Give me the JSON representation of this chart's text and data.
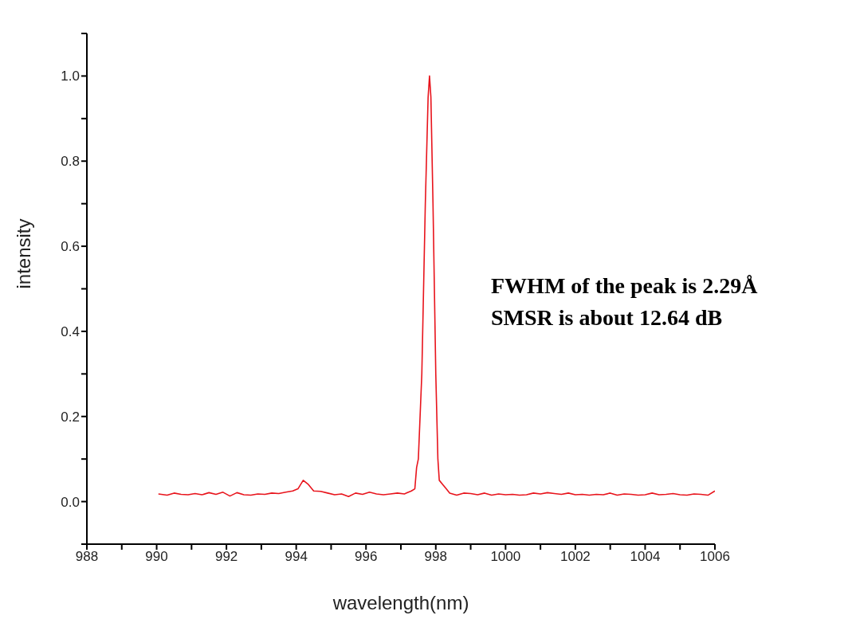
{
  "chart_data": {
    "type": "line",
    "xlabel": "wavelength(nm)",
    "ylabel": "intensity",
    "xlim": [
      988,
      1006
    ],
    "xticks": [
      988,
      {
        "value": 989,
        "label": null
      },
      990,
      {
        "value": 991,
        "label": null
      },
      992,
      {
        "value": 993,
        "label": null
      },
      994,
      {
        "value": 995,
        "label": null
      },
      996,
      {
        "value": 997,
        "label": null
      },
      998,
      {
        "value": 999,
        "label": null
      },
      1000,
      {
        "value": 1001,
        "label": null
      },
      1002,
      {
        "value": 1003,
        "label": null
      },
      1004,
      {
        "value": 1005,
        "label": null
      },
      1006
    ],
    "ylim": [
      -0.1,
      1.1
    ],
    "yticks": [
      {
        "value": -0.1,
        "label": null
      },
      {
        "value": 0,
        "label": "0.0"
      },
      {
        "value": 0.1,
        "label": null
      },
      0.2,
      {
        "value": 0.3,
        "label": null
      },
      0.4,
      {
        "value": 0.5,
        "label": null
      },
      0.6,
      {
        "value": 0.7,
        "label": null
      },
      0.8,
      {
        "value": 0.9,
        "label": null
      },
      {
        "value": 1,
        "label": "1.0"
      },
      {
        "value": 1.1,
        "label": null
      }
    ],
    "grid": false,
    "legend": false,
    "marker": "none",
    "line_style": "solid",
    "annotations": [
      "FWHM of the peak is 2.29Å",
      "SMSR is about 12.64 dB"
    ],
    "series": [
      {
        "color": "#e8141c",
        "x": [
          990.05,
          990.3,
          990.5,
          990.7,
          990.9,
          991.1,
          991.3,
          991.5,
          991.7,
          991.9,
          992.1,
          992.3,
          992.5,
          992.7,
          992.9,
          993.1,
          993.3,
          993.5,
          993.7,
          993.9,
          994.05,
          994.2,
          994.35,
          994.5,
          994.7,
          994.9,
          995.1,
          995.3,
          995.5,
          995.7,
          995.9,
          996.1,
          996.3,
          996.5,
          996.7,
          996.9,
          997.1,
          997.3,
          997.4,
          997.45,
          997.5,
          997.6,
          997.7,
          997.78,
          997.82,
          997.86,
          997.92,
          998.0,
          998.06,
          998.1,
          998.2,
          998.3,
          998.4,
          998.6,
          998.8,
          999.0,
          999.2,
          999.4,
          999.6,
          999.8,
          1000.0,
          1000.2,
          1000.4,
          1000.6,
          1000.8,
          1001.0,
          1001.2,
          1001.4,
          1001.6,
          1001.8,
          1002.0,
          1002.2,
          1002.4,
          1002.6,
          1002.8,
          1003.0,
          1003.2,
          1003.4,
          1003.6,
          1003.8,
          1004.0,
          1004.2,
          1004.4,
          1004.6,
          1004.8,
          1005.0,
          1005.2,
          1005.4,
          1005.6,
          1005.8,
          1006.0
        ],
        "values": [
          0.018,
          0.015,
          0.02,
          0.017,
          0.016,
          0.019,
          0.016,
          0.021,
          0.017,
          0.022,
          0.013,
          0.021,
          0.016,
          0.015,
          0.018,
          0.017,
          0.02,
          0.019,
          0.022,
          0.025,
          0.03,
          0.05,
          0.04,
          0.025,
          0.024,
          0.02,
          0.016,
          0.018,
          0.012,
          0.02,
          0.017,
          0.022,
          0.018,
          0.016,
          0.018,
          0.02,
          0.018,
          0.025,
          0.03,
          0.08,
          0.1,
          0.3,
          0.7,
          0.95,
          1.0,
          0.95,
          0.7,
          0.3,
          0.1,
          0.05,
          0.04,
          0.03,
          0.02,
          0.015,
          0.02,
          0.019,
          0.016,
          0.02,
          0.015,
          0.018,
          0.016,
          0.017,
          0.015,
          0.016,
          0.02,
          0.018,
          0.021,
          0.019,
          0.017,
          0.02,
          0.016,
          0.017,
          0.015,
          0.017,
          0.016,
          0.02,
          0.015,
          0.018,
          0.017,
          0.015,
          0.016,
          0.02,
          0.016,
          0.017,
          0.019,
          0.016,
          0.015,
          0.018,
          0.017,
          0.015,
          0.025
        ]
      }
    ]
  }
}
